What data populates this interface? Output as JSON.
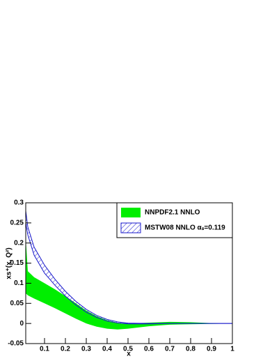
{
  "chart_data": {
    "type": "band",
    "x_label": "x",
    "y_label": "xs⁺(x, Q²)",
    "xlim": [
      0.01,
      1
    ],
    "ylim": [
      -0.05,
      0.3
    ],
    "xticks": [
      0.1,
      0.2,
      0.3,
      0.4,
      0.5,
      0.6,
      0.7,
      0.8,
      0.9,
      1
    ],
    "yticks": [
      -0.05,
      0,
      0.05,
      0.1,
      0.15,
      0.2,
      0.25,
      0.3
    ],
    "x": [
      0.01,
      0.02,
      0.05,
      0.1,
      0.15,
      0.2,
      0.25,
      0.3,
      0.35,
      0.4,
      0.45,
      0.5,
      0.6,
      0.7,
      0.8,
      0.9,
      1.0
    ],
    "series": [
      {
        "name": "NNPDF2.1 NNLO",
        "color": "#00ee00",
        "hatched": false,
        "upper": [
          0.21,
          0.13,
          0.115,
          0.1,
          0.085,
          0.068,
          0.05,
          0.032,
          0.018,
          0.008,
          0.002,
          0.0,
          0.002,
          0.004,
          0.003,
          0.001,
          0
        ],
        "lower": [
          0.075,
          0.07,
          0.062,
          0.05,
          0.038,
          0.025,
          0.012,
          0.0,
          -0.008,
          -0.013,
          -0.015,
          -0.013,
          -0.007,
          -0.003,
          -0.002,
          -0.001,
          0
        ]
      },
      {
        "name": "MSTW08 NNLO αₛ=0.119",
        "color": "#1a1acc",
        "hatched": true,
        "upper": [
          0.28,
          0.24,
          0.19,
          0.145,
          0.11,
          0.08,
          0.055,
          0.035,
          0.02,
          0.01,
          0.004,
          0.001,
          0,
          0,
          0,
          0,
          0
        ],
        "lower": [
          0.25,
          0.22,
          0.17,
          0.125,
          0.095,
          0.068,
          0.046,
          0.028,
          0.015,
          0.006,
          0.001,
          -0.001,
          -0.001,
          0,
          0,
          0,
          0
        ]
      }
    ]
  }
}
